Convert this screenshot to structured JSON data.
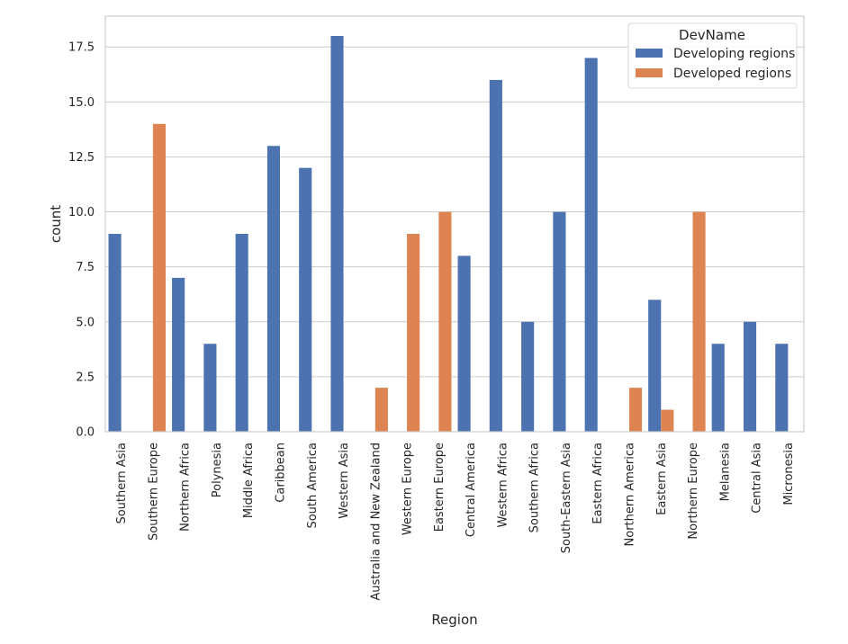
{
  "chart_data": {
    "type": "bar",
    "title": "",
    "xlabel": "Region",
    "ylabel": "count",
    "ylim": [
      0,
      18.9
    ],
    "yticks": [
      0.0,
      2.5,
      5.0,
      7.5,
      10.0,
      12.5,
      15.0,
      17.5
    ],
    "ytick_labels": [
      "0.0",
      "2.5",
      "5.0",
      "7.5",
      "10.0",
      "12.5",
      "15.0",
      "17.5"
    ],
    "grid": true,
    "legend": {
      "title": "DevName",
      "position": "top-right"
    },
    "categories": [
      "Southern Asia",
      "Southern Europe",
      "Northern Africa",
      "Polynesia",
      "Middle Africa",
      "Caribbean",
      "South America",
      "Western Asia",
      "Australia and New Zealand",
      "Western Europe",
      "Eastern Europe",
      "Central America",
      "Western Africa",
      "Southern Africa",
      "South-Eastern Asia",
      "Eastern Africa",
      "Northern America",
      "Eastern Asia",
      "Northern Europe",
      "Melanesia",
      "Central Asia",
      "Micronesia"
    ],
    "series": [
      {
        "name": "Developing regions",
        "color": "#4c72b0",
        "values": [
          9,
          0,
          7,
          4,
          9,
          13,
          12,
          18,
          0,
          0,
          0,
          8,
          16,
          5,
          10,
          17,
          0,
          6,
          0,
          4,
          5,
          4
        ]
      },
      {
        "name": "Developed regions",
        "color": "#dd8452",
        "values": [
          0,
          14,
          0,
          0,
          0,
          0,
          0,
          0,
          2,
          9,
          10,
          0,
          0,
          0,
          0,
          0,
          2,
          1,
          10,
          0,
          0,
          0
        ]
      }
    ]
  }
}
